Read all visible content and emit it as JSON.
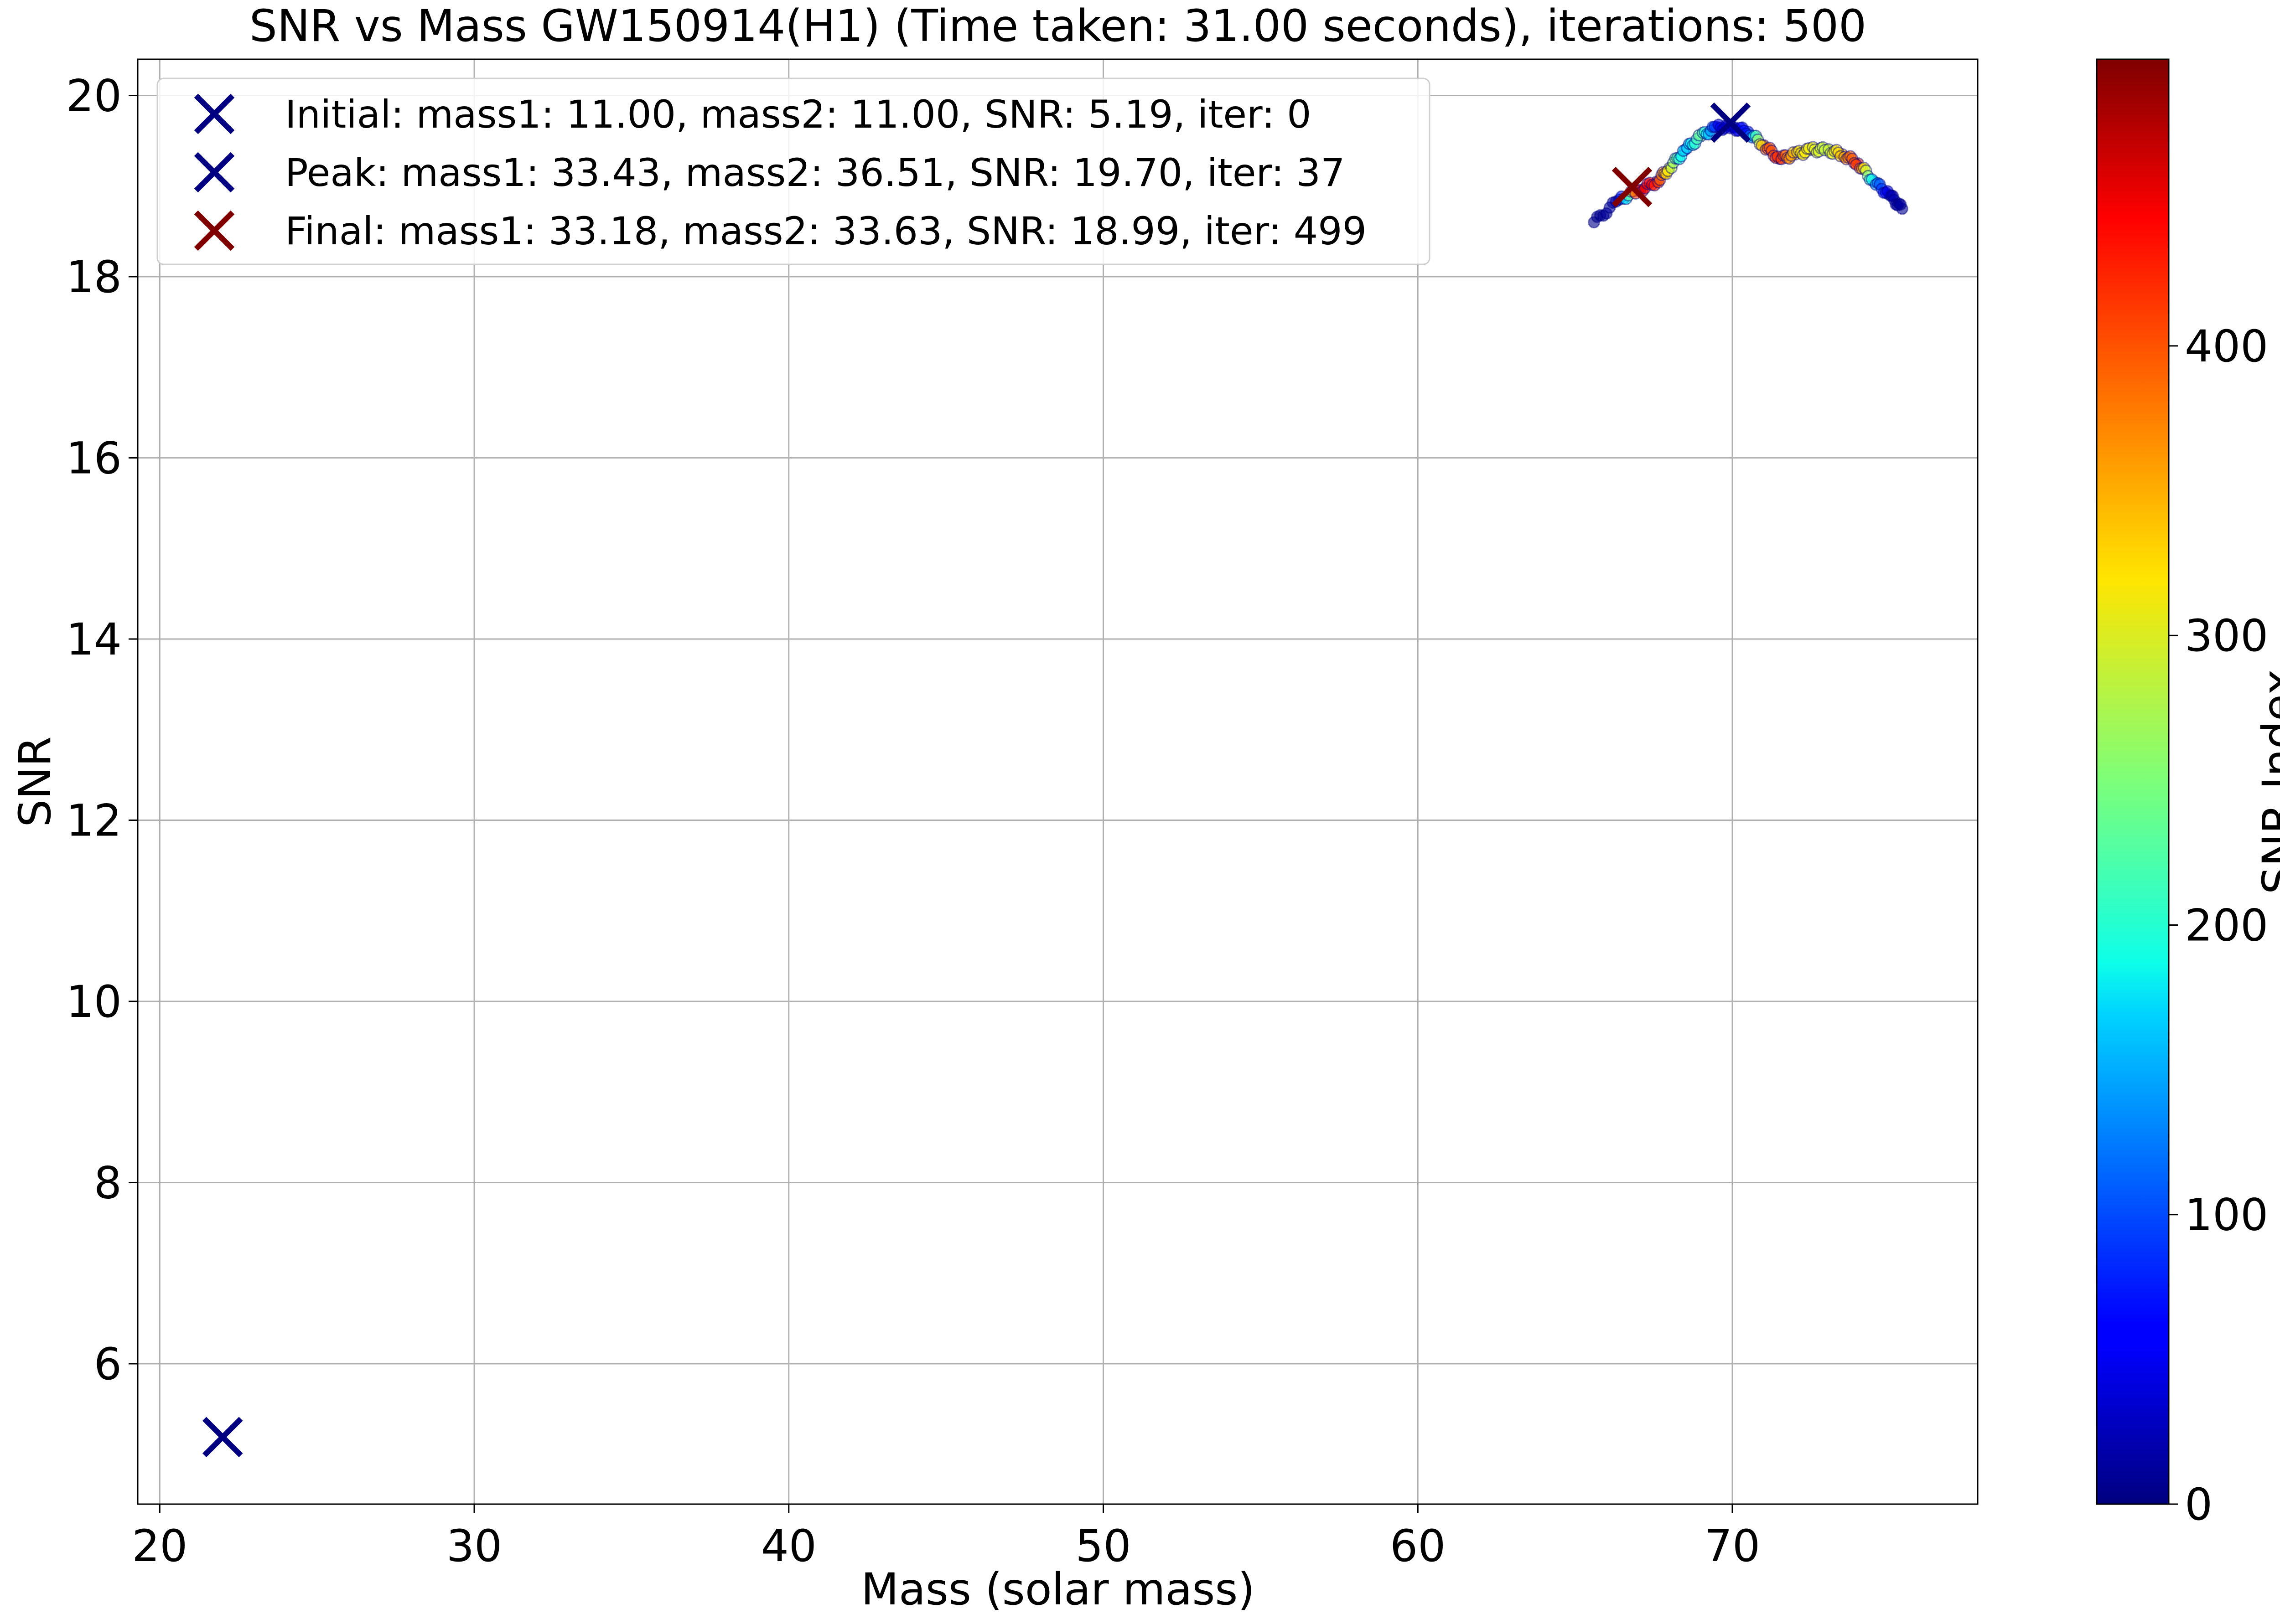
{
  "chart_data": {
    "type": "scatter",
    "title": "SNR vs Mass GW150914(H1) (Time taken: 31.00 seconds), iterations: 500",
    "xlabel": "Mass (solar mass)",
    "ylabel": "SNR",
    "xlim": [
      19.3,
      77.8
    ],
    "ylim": [
      4.45,
      20.4
    ],
    "xticks": [
      20,
      30,
      40,
      50,
      60,
      70
    ],
    "yticks": [
      6,
      8,
      10,
      12,
      14,
      16,
      18,
      20
    ],
    "grid": true,
    "legend_position": "top-left",
    "markers": [
      {
        "name": "Initial: mass1: 11.00, mass2: 11.00, SNR: 5.19, iter: 0",
        "x": 22.0,
        "y": 5.19,
        "color": "#000080"
      },
      {
        "name": "Peak: mass1: 33.43, mass2: 36.51, SNR: 19.70, iter: 37",
        "x": 69.94,
        "y": 19.7,
        "color": "#000080"
      },
      {
        "name": "Final: mass1: 33.18, mass2: 33.63, SNR: 18.99, iter: 499",
        "x": 66.81,
        "y": 18.99,
        "color": "#800000"
      }
    ],
    "colorbar": {
      "label": "SNR Index",
      "range": [
        0,
        499
      ],
      "ticks": [
        0,
        100,
        200,
        300,
        400
      ],
      "colormap": "jet"
    },
    "trajectory_anchors": [
      [
        65.6,
        18.6,
        5
      ],
      [
        66.4,
        18.85,
        20
      ],
      [
        67.0,
        18.95,
        460
      ],
      [
        67.6,
        19.05,
        420
      ],
      [
        68.0,
        19.2,
        300
      ],
      [
        68.5,
        19.4,
        150
      ],
      [
        69.0,
        19.55,
        250
      ],
      [
        69.5,
        19.65,
        60
      ],
      [
        70.0,
        19.65,
        40
      ],
      [
        70.5,
        19.6,
        80
      ],
      [
        71.0,
        19.45,
        380
      ],
      [
        71.5,
        19.3,
        420
      ],
      [
        72.0,
        19.35,
        330
      ],
      [
        72.5,
        19.4,
        310
      ],
      [
        73.0,
        19.4,
        280
      ],
      [
        73.5,
        19.35,
        350
      ],
      [
        74.0,
        19.25,
        420
      ],
      [
        74.5,
        19.05,
        150
      ],
      [
        75.0,
        18.9,
        30
      ],
      [
        75.4,
        18.75,
        10
      ]
    ]
  }
}
